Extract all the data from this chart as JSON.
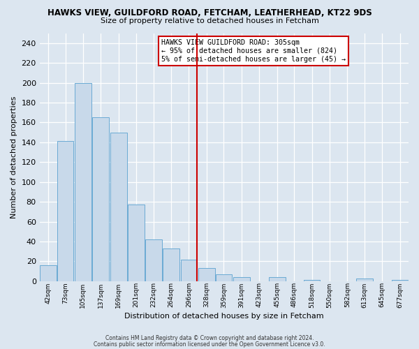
{
  "title": "HAWKS VIEW, GUILDFORD ROAD, FETCHAM, LEATHERHEAD, KT22 9DS",
  "subtitle": "Size of property relative to detached houses in Fetcham",
  "xlabel": "Distribution of detached houses by size in Fetcham",
  "ylabel": "Number of detached properties",
  "bar_color": "#c8d9ea",
  "bar_edge_color": "#6aaad4",
  "bg_color": "#dce6f0",
  "grid_color": "#ffffff",
  "annotation_box_color": "#ffffff",
  "annotation_box_edge": "#cc0000",
  "vline_color": "#cc0000",
  "vline_x_index": 8,
  "annotation_text_line1": "HAWKS VIEW GUILDFORD ROAD: 305sqm",
  "annotation_text_line2": "← 95% of detached houses are smaller (824)",
  "annotation_text_line3": "5% of semi-detached houses are larger (45) →",
  "footer1": "Contains HM Land Registry data © Crown copyright and database right 2024.",
  "footer2": "Contains public sector information licensed under the Open Government Licence v3.0.",
  "bins": [
    42,
    73,
    105,
    137,
    169,
    201,
    232,
    264,
    296,
    328,
    359,
    391,
    423,
    455,
    486,
    518,
    550,
    582,
    613,
    645,
    677
  ],
  "bin_width": 31,
  "counts": [
    16,
    141,
    200,
    165,
    150,
    77,
    42,
    33,
    22,
    13,
    7,
    4,
    0,
    4,
    0,
    1,
    0,
    0,
    3,
    0,
    1
  ],
  "ylim": [
    0,
    250
  ],
  "yticks": [
    0,
    20,
    40,
    60,
    80,
    100,
    120,
    140,
    160,
    180,
    200,
    220,
    240
  ]
}
